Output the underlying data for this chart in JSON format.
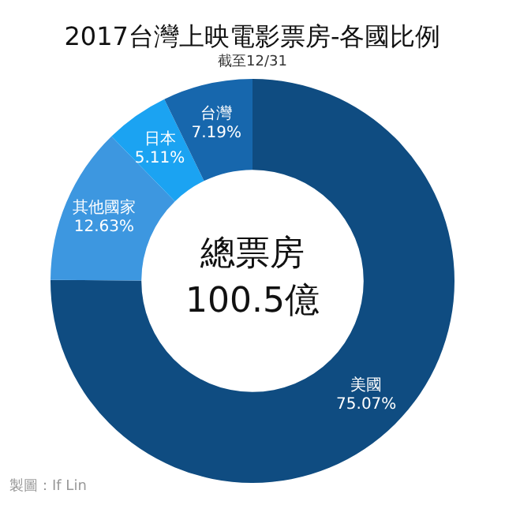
{
  "chart_data": {
    "type": "donut",
    "title": "2017台灣上映電影票房-各國比例",
    "subtitle": "截至12/31",
    "categories": [
      "美國",
      "其他國家",
      "日本",
      "台灣"
    ],
    "values": [
      75.07,
      12.63,
      5.11,
      7.19
    ],
    "colors": [
      "#0f4c81",
      "#3d97e0",
      "#1ba3f2",
      "#1767ad"
    ],
    "value_labels": [
      "75.07%",
      "12.63%",
      "5.11%",
      "7.19%"
    ],
    "legend": false,
    "annotations": [
      "總票房",
      "100.5億",
      "製圖：If Lin"
    ]
  }
}
